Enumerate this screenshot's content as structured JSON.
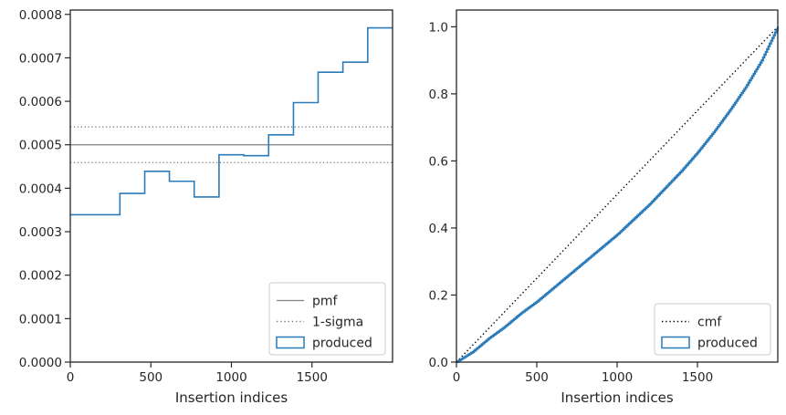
{
  "chart_data": [
    {
      "type": "line",
      "panel": "left",
      "xlabel": "Insertion indices",
      "ylabel": "",
      "xlim": [
        0,
        2000
      ],
      "ylim": [
        0,
        0.00081
      ],
      "xticks": [
        0,
        500,
        1000,
        1500
      ],
      "xtick_labels": [
        "0",
        "500",
        "1000",
        "1500"
      ],
      "yticks": [
        0,
        0.0001,
        0.0002,
        0.0003,
        0.0004,
        0.0005,
        0.0006,
        0.0007,
        0.0008
      ],
      "ytick_labels": [
        "0.0000",
        "0.0001",
        "0.0002",
        "0.0003",
        "0.0004",
        "0.0005",
        "0.0006",
        "0.0007",
        "0.0008"
      ],
      "grid": false,
      "legend_position": "lower-right",
      "series": [
        {
          "name": "pmf",
          "style": "solid",
          "color": "#808080",
          "y": 0.0005
        },
        {
          "name": "1-sigma",
          "style": "dotted",
          "color": "#808080",
          "y_values": [
            0.000459,
            0.000541
          ]
        },
        {
          "name": "produced",
          "style": "step-histogram",
          "color": "#2b7bb9",
          "bin_edges": [
            0,
            154,
            308,
            462,
            615,
            769,
            923,
            1077,
            1231,
            1385,
            1538,
            1692,
            1846,
            2000
          ],
          "values": [
            0.000339,
            0.000339,
            0.000388,
            0.000439,
            0.000416,
            0.00038,
            0.000477,
            0.000475,
            0.000523,
            0.000597,
            0.000667,
            0.00069,
            0.000769
          ]
        }
      ]
    },
    {
      "type": "line",
      "panel": "right",
      "xlabel": "Insertion indices",
      "ylabel": "",
      "xlim": [
        0,
        2000
      ],
      "ylim": [
        0,
        1.05
      ],
      "xticks": [
        0,
        500,
        1000,
        1500
      ],
      "xtick_labels": [
        "0",
        "500",
        "1000",
        "1500"
      ],
      "yticks": [
        0,
        0.2,
        0.4,
        0.6,
        0.8,
        1.0
      ],
      "ytick_labels": [
        "0.0",
        "0.2",
        "0.4",
        "0.6",
        "0.8",
        "1.0"
      ],
      "grid": false,
      "legend_position": "lower-right",
      "series": [
        {
          "name": "cmf",
          "style": "dotted",
          "color": "#000000",
          "x": [
            0,
            2000
          ],
          "values": [
            0,
            1.0
          ]
        },
        {
          "name": "produced",
          "style": "step",
          "color": "#2b7bb9",
          "x": [
            0,
            100,
            200,
            300,
            400,
            500,
            600,
            700,
            800,
            900,
            1000,
            1100,
            1200,
            1300,
            1400,
            1500,
            1600,
            1700,
            1800,
            1900,
            2000
          ],
          "values": [
            0,
            0.03,
            0.07,
            0.105,
            0.145,
            0.18,
            0.22,
            0.26,
            0.3,
            0.34,
            0.38,
            0.425,
            0.47,
            0.52,
            0.57,
            0.625,
            0.685,
            0.75,
            0.82,
            0.9,
            1.0
          ]
        }
      ]
    }
  ]
}
